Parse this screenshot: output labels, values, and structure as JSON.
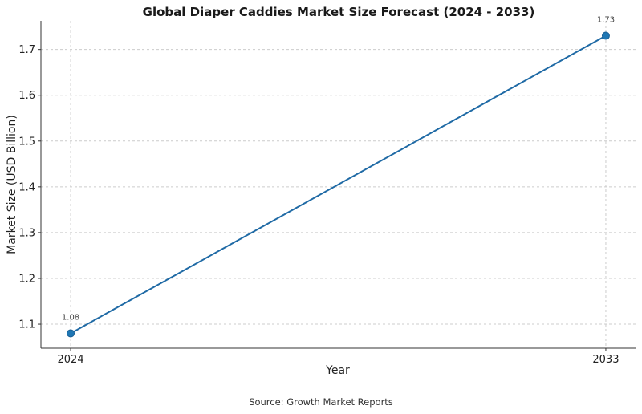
{
  "chart_data": {
    "type": "line",
    "title": "Global Diaper Caddies Market Size Forecast (2024 - 2033)",
    "xlabel": "Year",
    "ylabel": "Market Size (USD Billion)",
    "x": [
      2024,
      2033
    ],
    "x_tick_labels": [
      "2024",
      "2033"
    ],
    "series": [
      {
        "values": [
          1.08,
          1.73
        ],
        "data_labels": [
          "1.08",
          "1.73"
        ]
      }
    ],
    "xlim": [
      2023.5,
      2033.5
    ],
    "ylim": [
      1.0475,
      1.7625
    ],
    "y_ticks": [
      1.1,
      1.2,
      1.3,
      1.4,
      1.5,
      1.6,
      1.7
    ],
    "y_tick_labels": [
      "1.1",
      "1.2",
      "1.3",
      "1.4",
      "1.5",
      "1.6",
      "1.7"
    ],
    "grid": true,
    "line_color": "#1f6aa5",
    "marker_color": "#1f77b4"
  },
  "footer": {
    "source": "Source: Growth Market Reports"
  }
}
